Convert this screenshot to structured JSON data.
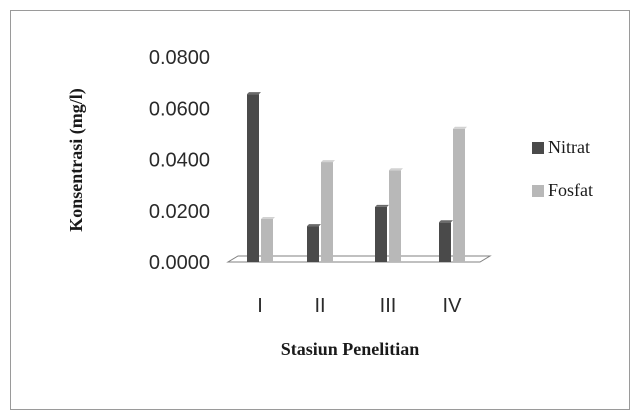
{
  "chart_data": {
    "type": "bar",
    "title": "",
    "xlabel": "Stasiun Penelitian",
    "ylabel": "Konsentrasi (mg/l)",
    "categories": [
      "I",
      "II",
      "III",
      "IV"
    ],
    "series": [
      {
        "name": "Nitrat",
        "values": [
          0.0655,
          0.014,
          0.0215,
          0.0155
        ],
        "color": "#4a4a4a"
      },
      {
        "name": "Fosfat",
        "values": [
          0.0168,
          0.039,
          0.0358,
          0.052
        ],
        "color": "#b8b8b8"
      }
    ],
    "ylim": [
      0,
      0.08
    ],
    "yticks": [
      "0.0000",
      "0.0200",
      "0.0400",
      "0.0600",
      "0.0800"
    ],
    "grid": false,
    "legend_position": "right"
  }
}
